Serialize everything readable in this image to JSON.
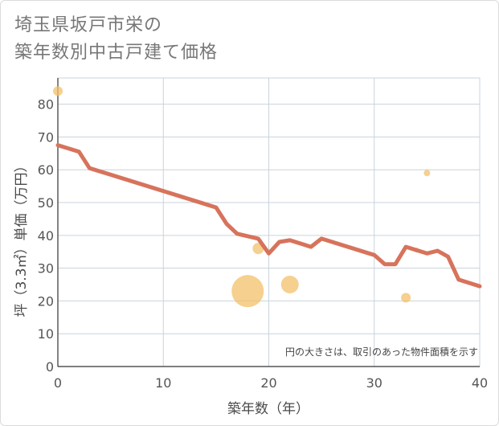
{
  "title_line1": "埼玉県坂戸市栄の",
  "title_line2": "築年数別中古戸建て価格",
  "chart_data": {
    "type": "line+scatter",
    "xlabel": "築年数（年）",
    "ylabel": "坪（3.3㎡）単価（万円）",
    "xlim": [
      0,
      40
    ],
    "ylim": [
      0,
      88
    ],
    "xticks": [
      0,
      10,
      20,
      30,
      40
    ],
    "yticks": [
      0,
      10,
      20,
      30,
      40,
      50,
      60,
      70,
      80
    ],
    "grid": true,
    "note": "円の大きさは、取引のあった物件面積を示す",
    "line_color": "#d7735c",
    "bubble_color": "#f3c06a",
    "line": {
      "x": [
        0,
        2,
        3,
        15,
        16,
        17,
        19,
        20,
        21,
        22,
        24,
        25,
        30,
        31,
        32,
        33,
        35,
        36,
        37,
        38,
        40
      ],
      "y": [
        67.5,
        65.5,
        60.5,
        48.5,
        43.5,
        40.5,
        39,
        34.5,
        38,
        38.5,
        36.5,
        39,
        34,
        31.2,
        31.2,
        36.5,
        34.5,
        35.3,
        33.5,
        26.5,
        24.5
      ]
    },
    "bubbles": [
      {
        "x": 0,
        "y": 84,
        "size": 6
      },
      {
        "x": 18,
        "y": 23,
        "size": 20
      },
      {
        "x": 19,
        "y": 36,
        "size": 7
      },
      {
        "x": 22,
        "y": 25,
        "size": 11
      },
      {
        "x": 33,
        "y": 21,
        "size": 6
      },
      {
        "x": 34,
        "y": 35.5,
        "size": 3
      },
      {
        "x": 35,
        "y": 59,
        "size": 4
      }
    ]
  }
}
